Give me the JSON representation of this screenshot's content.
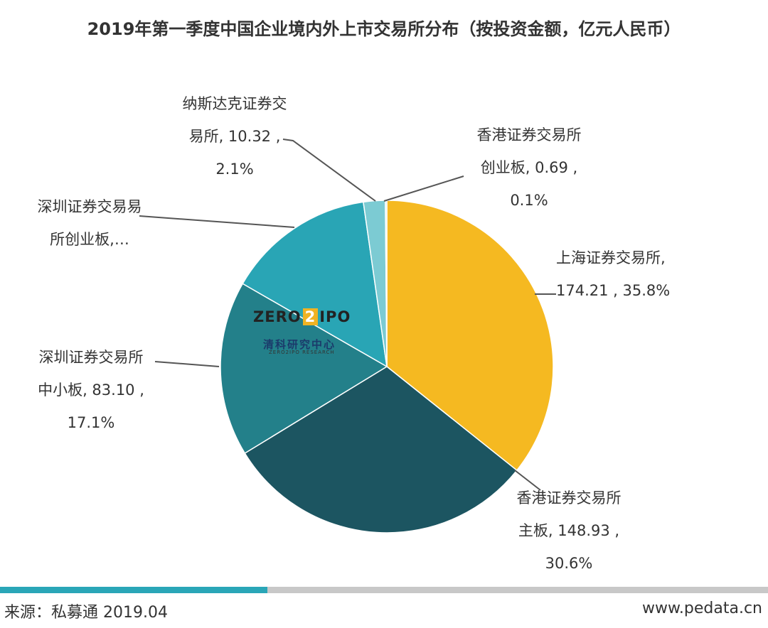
{
  "chart_data": {
    "type": "pie",
    "title": "2019年第一季度中国企业境内外上市交易所分布（按投资金额，亿元人民币）",
    "slices": [
      {
        "name": "上海证券交易所",
        "value": 174.21,
        "percent": "35.8%",
        "color": "#f5b921",
        "label_lines": [
          "上海证券交易所,",
          "174.21 , 35.8%"
        ]
      },
      {
        "name": "香港证券交易所主板",
        "value": 148.93,
        "percent": "30.6%",
        "color": "#1c5561",
        "label_lines": [
          "香港证券交易所",
          "主板, 148.93 ,",
          "30.6%"
        ]
      },
      {
        "name": "深圳证券交易所中小板",
        "value": 83.1,
        "percent": "17.1%",
        "color": "#23808a",
        "label_lines": [
          "深圳证券交易所",
          "中小板, 83.10 ,",
          "17.1%"
        ]
      },
      {
        "name": "深圳证券交易所创业板",
        "value": 70.34,
        "percent": "14.4%",
        "color": "#29a5b5",
        "label_lines": [
          "深圳证券交易易",
          "所创业板,…"
        ]
      },
      {
        "name": "纳斯达克证券交易所",
        "value": 10.32,
        "percent": "2.1%",
        "color": "#7ccbd3",
        "label_lines": [
          "纳斯达克证券交",
          "易所, 10.32 ,",
          "2.1%"
        ]
      },
      {
        "name": "香港证券交易所创业板",
        "value": 0.69,
        "percent": "0.1%",
        "color": "#b9e3e8",
        "label_lines": [
          "香港证券交易所",
          "创业板, 0.69 ,",
          "0.1%"
        ]
      }
    ]
  },
  "watermark": {
    "text_left": "ZERO",
    "text_box": "2",
    "text_right": "IPO",
    "cn": "清科研究中心",
    "en": "ZERO2IPO RESEARCH"
  },
  "footer": {
    "source": "来源：私募通 2019.04",
    "site": "www.pedata.cn"
  }
}
